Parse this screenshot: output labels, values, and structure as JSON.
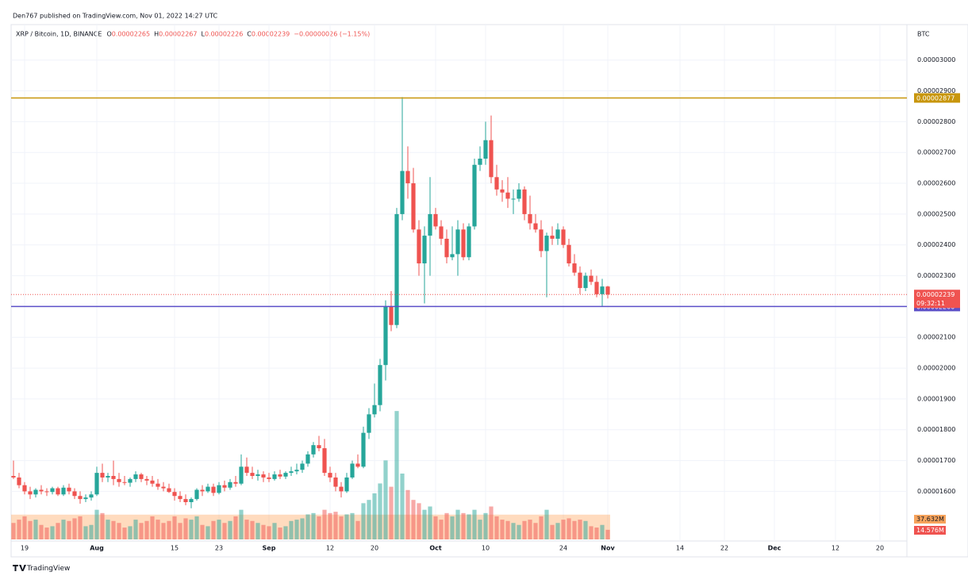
{
  "header": {
    "published": "Den767 published on TradingView.com, Nov 01, 2022 14:27 UTC"
  },
  "chart_data": {
    "type": "candlestick",
    "symbol": "XRP / Bitcoin, 1D, BINANCE",
    "legend": [
      {
        "key": "O",
        "value": "0.00002265"
      },
      {
        "key": "H",
        "value": "0.00002267"
      },
      {
        "key": "L",
        "value": "0.00002226"
      },
      {
        "key": "C",
        "value": "0.00002239"
      }
    ],
    "change": "−0.00000026 (−1.15%)",
    "currency": "BTC",
    "up_color": "#26a69a",
    "down_color": "#ef5350",
    "x": [
      "2022-07-17",
      "2022-07-18",
      "2022-07-19",
      "2022-07-20",
      "2022-07-21",
      "2022-07-22",
      "2022-07-23",
      "2022-07-24",
      "2022-07-25",
      "2022-07-26",
      "2022-07-27",
      "2022-07-28",
      "2022-07-29",
      "2022-07-30",
      "2022-07-31",
      "2022-08-01",
      "2022-08-02",
      "2022-08-03",
      "2022-08-04",
      "2022-08-05",
      "2022-08-06",
      "2022-08-07",
      "2022-08-08",
      "2022-08-09",
      "2022-08-10",
      "2022-08-11",
      "2022-08-12",
      "2022-08-13",
      "2022-08-14",
      "2022-08-15",
      "2022-08-16",
      "2022-08-17",
      "2022-08-18",
      "2022-08-19",
      "2022-08-20",
      "2022-08-21",
      "2022-08-22",
      "2022-08-23",
      "2022-08-24",
      "2022-08-25",
      "2022-08-26",
      "2022-08-27",
      "2022-08-28",
      "2022-08-29",
      "2022-08-30",
      "2022-08-31",
      "2022-09-01",
      "2022-09-02",
      "2022-09-03",
      "2022-09-04",
      "2022-09-05",
      "2022-09-06",
      "2022-09-07",
      "2022-09-08",
      "2022-09-09",
      "2022-09-10",
      "2022-09-11",
      "2022-09-12",
      "2022-09-13",
      "2022-09-14",
      "2022-09-15",
      "2022-09-16",
      "2022-09-17",
      "2022-09-18",
      "2022-09-19",
      "2022-09-20",
      "2022-09-21",
      "2022-09-22",
      "2022-09-23",
      "2022-09-24",
      "2022-09-25",
      "2022-09-26",
      "2022-09-27",
      "2022-09-28",
      "2022-09-29",
      "2022-09-30",
      "2022-10-01",
      "2022-10-02",
      "2022-10-03",
      "2022-10-04",
      "2022-10-05",
      "2022-10-06",
      "2022-10-07",
      "2022-10-08",
      "2022-10-09",
      "2022-10-10",
      "2022-10-11",
      "2022-10-12",
      "2022-10-13",
      "2022-10-14",
      "2022-10-15",
      "2022-10-16",
      "2022-10-17",
      "2022-10-18",
      "2022-10-19",
      "2022-10-20",
      "2022-10-21",
      "2022-10-22",
      "2022-10-23",
      "2022-10-24",
      "2022-10-25",
      "2022-10-26",
      "2022-10-27",
      "2022-10-28",
      "2022-10-29",
      "2022-10-30",
      "2022-10-31",
      "2022-11-01"
    ],
    "open": [
      1.65e-05,
      1.645e-05,
      1.62e-05,
      1.6e-05,
      1.59e-05,
      1.605e-05,
      1.6e-05,
      1.598e-05,
      1.61e-05,
      1.59e-05,
      1.612e-05,
      1.6e-05,
      1.585e-05,
      1.575e-05,
      1.58e-05,
      1.59e-05,
      1.66e-05,
      1.645e-05,
      1.65e-05,
      1.64e-05,
      1.63e-05,
      1.628e-05,
      1.64e-05,
      1.655e-05,
      1.64e-05,
      1.635e-05,
      1.625e-05,
      1.615e-05,
      1.61e-05,
      1.598e-05,
      1.585e-05,
      1.575e-05,
      1.565e-05,
      1.575e-05,
      1.605e-05,
      1.6e-05,
      1.615e-05,
      1.595e-05,
      1.62e-05,
      1.612e-05,
      1.63e-05,
      1.625e-05,
      1.68e-05,
      1.66e-05,
      1.65e-05,
      1.655e-05,
      1.645e-05,
      1.64e-05,
      1.655e-05,
      1.648e-05,
      1.66e-05,
      1.665e-05,
      1.67e-05,
      1.69e-05,
      1.72e-05,
      1.75e-05,
      1.74e-05,
      1.66e-05,
      1.645e-05,
      1.615e-05,
      1.6e-05,
      1.645e-05,
      1.69e-05,
      1.68e-05,
      1.79e-05,
      1.85e-05,
      1.88e-05,
      2.01e-05,
      2.2e-05,
      2.14e-05,
      2.5e-05,
      2.64e-05,
      2.6e-05,
      2.45e-05,
      2.34e-05,
      2.43e-05,
      2.5e-05,
      2.46e-05,
      2.42e-05,
      2.36e-05,
      2.37e-05,
      2.45e-05,
      2.36e-05,
      2.46e-05,
      2.66e-05,
      2.68e-05,
      2.74e-05,
      2.62e-05,
      2.58e-05,
      2.57e-05,
      2.55e-05,
      2.55e-05,
      2.58e-05,
      2.5e-05,
      2.47e-05,
      2.45e-05,
      2.38e-05,
      2.43e-05,
      2.42e-05,
      2.45e-05,
      2.4e-05,
      2.34e-05,
      2.31e-05,
      2.26e-05,
      2.3e-05,
      2.28e-05,
      2.24e-05,
      2.265e-05
    ],
    "high": [
      1.7e-05,
      1.66e-05,
      1.63e-05,
      1.615e-05,
      1.61e-05,
      1.62e-05,
      1.61e-05,
      1.615e-05,
      1.615e-05,
      1.62e-05,
      1.625e-05,
      1.61e-05,
      1.6e-05,
      1.59e-05,
      1.6e-05,
      1.68e-05,
      1.69e-05,
      1.66e-05,
      1.7e-05,
      1.66e-05,
      1.65e-05,
      1.645e-05,
      1.665e-05,
      1.66e-05,
      1.65e-05,
      1.65e-05,
      1.64e-05,
      1.63e-05,
      1.625e-05,
      1.61e-05,
      1.6e-05,
      1.59e-05,
      1.58e-05,
      1.61e-05,
      1.62e-05,
      1.625e-05,
      1.625e-05,
      1.63e-05,
      1.635e-05,
      1.64e-05,
      1.65e-05,
      1.72e-05,
      1.71e-05,
      1.68e-05,
      1.67e-05,
      1.665e-05,
      1.66e-05,
      1.665e-05,
      1.67e-05,
      1.665e-05,
      1.68e-05,
      1.69e-05,
      1.7e-05,
      1.73e-05,
      1.76e-05,
      1.78e-05,
      1.77e-05,
      1.68e-05,
      1.66e-05,
      1.63e-05,
      1.66e-05,
      1.7e-05,
      1.72e-05,
      1.81e-05,
      1.87e-05,
      1.95e-05,
      2.03e-05,
      2.22e-05,
      2.25e-05,
      2.52e-05,
      2.88e-05,
      2.72e-05,
      2.65e-05,
      2.48e-05,
      2.46e-05,
      2.62e-05,
      2.52e-05,
      2.48e-05,
      2.45e-05,
      2.46e-05,
      2.48e-05,
      2.47e-05,
      2.47e-05,
      2.68e-05,
      2.72e-05,
      2.8e-05,
      2.82e-05,
      2.66e-05,
      2.61e-05,
      2.62e-05,
      2.58e-05,
      2.6e-05,
      2.59e-05,
      2.56e-05,
      2.5e-05,
      2.48e-05,
      2.44e-05,
      2.46e-05,
      2.47e-05,
      2.46e-05,
      2.42e-05,
      2.37e-05,
      2.33e-05,
      2.31e-05,
      2.32e-05,
      2.3e-05,
      2.29e-05,
      2.267e-05
    ],
    "low": [
      1.64e-05,
      1.61e-05,
      1.59e-05,
      1.575e-05,
      1.58e-05,
      1.59e-05,
      1.585e-05,
      1.59e-05,
      1.585e-05,
      1.585e-05,
      1.59e-05,
      1.575e-05,
      1.56e-05,
      1.565e-05,
      1.57e-05,
      1.585e-05,
      1.63e-05,
      1.63e-05,
      1.62e-05,
      1.615e-05,
      1.62e-05,
      1.615e-05,
      1.63e-05,
      1.63e-05,
      1.62e-05,
      1.615e-05,
      1.605e-05,
      1.6e-05,
      1.595e-05,
      1.57e-05,
      1.565e-05,
      1.555e-05,
      1.545e-05,
      1.57e-05,
      1.585e-05,
      1.595e-05,
      1.585e-05,
      1.59e-05,
      1.6e-05,
      1.605e-05,
      1.615e-05,
      1.62e-05,
      1.65e-05,
      1.64e-05,
      1.635e-05,
      1.63e-05,
      1.63e-05,
      1.635e-05,
      1.64e-05,
      1.64e-05,
      1.65e-05,
      1.655e-05,
      1.66e-05,
      1.68e-05,
      1.71e-05,
      1.73e-05,
      1.65e-05,
      1.63e-05,
      1.6e-05,
      1.58e-05,
      1.595e-05,
      1.64e-05,
      1.675e-05,
      1.675e-05,
      1.77e-05,
      1.84e-05,
      1.86e-05,
      1.96e-05,
      2.12e-05,
      2.13e-05,
      2.48e-05,
      2.55e-05,
      2.44e-05,
      2.3e-05,
      2.21e-05,
      2.3e-05,
      2.45e-05,
      2.4e-05,
      2.34e-05,
      2.35e-05,
      2.3e-05,
      2.35e-05,
      2.35e-05,
      2.45e-05,
      2.64e-05,
      2.66e-05,
      2.6e-05,
      2.56e-05,
      2.54e-05,
      2.52e-05,
      2.5e-05,
      2.54e-05,
      2.48e-05,
      2.45e-05,
      2.44e-05,
      2.36e-05,
      2.23e-05,
      2.4e-05,
      2.4e-05,
      2.39e-05,
      2.33e-05,
      2.3e-05,
      2.24e-05,
      2.25e-05,
      2.27e-05,
      2.23e-05,
      2.2e-05,
      2.226e-05
    ],
    "close": [
      1.645e-05,
      1.62e-05,
      1.6e-05,
      1.59e-05,
      1.605e-05,
      1.6e-05,
      1.598e-05,
      1.61e-05,
      1.59e-05,
      1.612e-05,
      1.6e-05,
      1.585e-05,
      1.575e-05,
      1.58e-05,
      1.59e-05,
      1.66e-05,
      1.645e-05,
      1.65e-05,
      1.64e-05,
      1.63e-05,
      1.628e-05,
      1.64e-05,
      1.655e-05,
      1.64e-05,
      1.635e-05,
      1.625e-05,
      1.615e-05,
      1.61e-05,
      1.598e-05,
      1.585e-05,
      1.575e-05,
      1.565e-05,
      1.575e-05,
      1.605e-05,
      1.6e-05,
      1.615e-05,
      1.595e-05,
      1.62e-05,
      1.612e-05,
      1.63e-05,
      1.625e-05,
      1.68e-05,
      1.66e-05,
      1.65e-05,
      1.655e-05,
      1.645e-05,
      1.64e-05,
      1.655e-05,
      1.648e-05,
      1.66e-05,
      1.665e-05,
      1.67e-05,
      1.69e-05,
      1.72e-05,
      1.75e-05,
      1.74e-05,
      1.66e-05,
      1.645e-05,
      1.615e-05,
      1.6e-05,
      1.645e-05,
      1.69e-05,
      1.68e-05,
      1.79e-05,
      1.85e-05,
      1.88e-05,
      2.01e-05,
      2.2e-05,
      2.14e-05,
      2.5e-05,
      2.64e-05,
      2.6e-05,
      2.45e-05,
      2.34e-05,
      2.43e-05,
      2.5e-05,
      2.46e-05,
      2.42e-05,
      2.36e-05,
      2.37e-05,
      2.45e-05,
      2.36e-05,
      2.46e-05,
      2.66e-05,
      2.68e-05,
      2.74e-05,
      2.62e-05,
      2.58e-05,
      2.57e-05,
      2.55e-05,
      2.55e-05,
      2.58e-05,
      2.5e-05,
      2.47e-05,
      2.45e-05,
      2.38e-05,
      2.43e-05,
      2.42e-05,
      2.45e-05,
      2.4e-05,
      2.34e-05,
      2.31e-05,
      2.26e-05,
      2.3e-05,
      2.28e-05,
      2.24e-05,
      2.265e-05,
      2.239e-05
    ],
    "volume": [
      25,
      30,
      35,
      28,
      30,
      22,
      18,
      20,
      25,
      30,
      28,
      32,
      35,
      20,
      22,
      45,
      40,
      30,
      28,
      25,
      18,
      20,
      30,
      25,
      28,
      35,
      30,
      25,
      28,
      35,
      25,
      32,
      30,
      35,
      22,
      20,
      28,
      30,
      25,
      28,
      35,
      45,
      30,
      28,
      25,
      22,
      20,
      25,
      18,
      20,
      28,
      30,
      32,
      38,
      40,
      35,
      45,
      40,
      42,
      35,
      38,
      40,
      28,
      55,
      60,
      70,
      85,
      120,
      80,
      195,
      100,
      75,
      60,
      55,
      45,
      50,
      35,
      30,
      40,
      35,
      45,
      40,
      38,
      45,
      30,
      40,
      50,
      35,
      30,
      28,
      25,
      22,
      28,
      30,
      25,
      35,
      45,
      22,
      25,
      30,
      32,
      28,
      30,
      28,
      20,
      18,
      22,
      14.576
    ],
    "last_volume_label": "14.576M",
    "volume_ma": {
      "value": 37.632,
      "label": "37.632M"
    },
    "ylim": [
      1.444e-05,
      3.11e-05
    ],
    "yticks": [
      {
        "value": 1.6e-05,
        "label": "0.00001600"
      },
      {
        "value": 1.7e-05,
        "label": "0.00001700"
      },
      {
        "value": 1.8e-05,
        "label": "0.00001800"
      },
      {
        "value": 1.9e-05,
        "label": "0.00001900"
      },
      {
        "value": 2e-05,
        "label": "0.00002000"
      },
      {
        "value": 2.1e-05,
        "label": "0.00002100"
      },
      {
        "value": 2.2e-05,
        "label": "0.00002200"
      },
      {
        "value": 2.3e-05,
        "label": "0.00002300"
      },
      {
        "value": 2.4e-05,
        "label": "0.00002400"
      },
      {
        "value": 2.5e-05,
        "label": "0.00002500"
      },
      {
        "value": 2.6e-05,
        "label": "0.00002600"
      },
      {
        "value": 2.7e-05,
        "label": "0.00002700"
      },
      {
        "value": 2.8e-05,
        "label": "0.00002800"
      },
      {
        "value": 2.9e-05,
        "label": "0.00002900"
      },
      {
        "value": 3e-05,
        "label": "0.00003000"
      }
    ],
    "xlim": [
      "2022-07-17",
      "2022-12-24"
    ],
    "xticks": [
      {
        "value": "2022-07-19",
        "label": "19"
      },
      {
        "value": "2022-08-01",
        "label": "Aug"
      },
      {
        "value": "2022-08-15",
        "label": "15"
      },
      {
        "value": "2022-08-23",
        "label": "23"
      },
      {
        "value": "2022-09-01",
        "label": "Sep"
      },
      {
        "value": "2022-09-12",
        "label": "12"
      },
      {
        "value": "2022-09-20",
        "label": "20"
      },
      {
        "value": "2022-10-01",
        "label": "Oct"
      },
      {
        "value": "2022-10-10",
        "label": "10"
      },
      {
        "value": "2022-10-24",
        "label": "24"
      },
      {
        "value": "2022-11-01",
        "label": "Nov"
      },
      {
        "value": "2022-11-14",
        "label": "14"
      },
      {
        "value": "2022-11-22",
        "label": "22"
      },
      {
        "value": "2022-12-01",
        "label": "Dec"
      },
      {
        "value": "2022-12-12",
        "label": "12"
      },
      {
        "value": "2022-12-20",
        "label": "20"
      }
    ],
    "grid": true,
    "lines": [
      {
        "value": 2.877e-05,
        "label": "0.00002877",
        "color": "#c8960c"
      },
      {
        "value": 2.2e-05,
        "label": "0.00002200",
        "color": "#5b4fc8"
      }
    ],
    "last_price": {
      "value": 2.239e-05,
      "label": "0.00002239",
      "countdown": "09:32:11"
    }
  },
  "footer": {
    "brand": "TradingView"
  }
}
